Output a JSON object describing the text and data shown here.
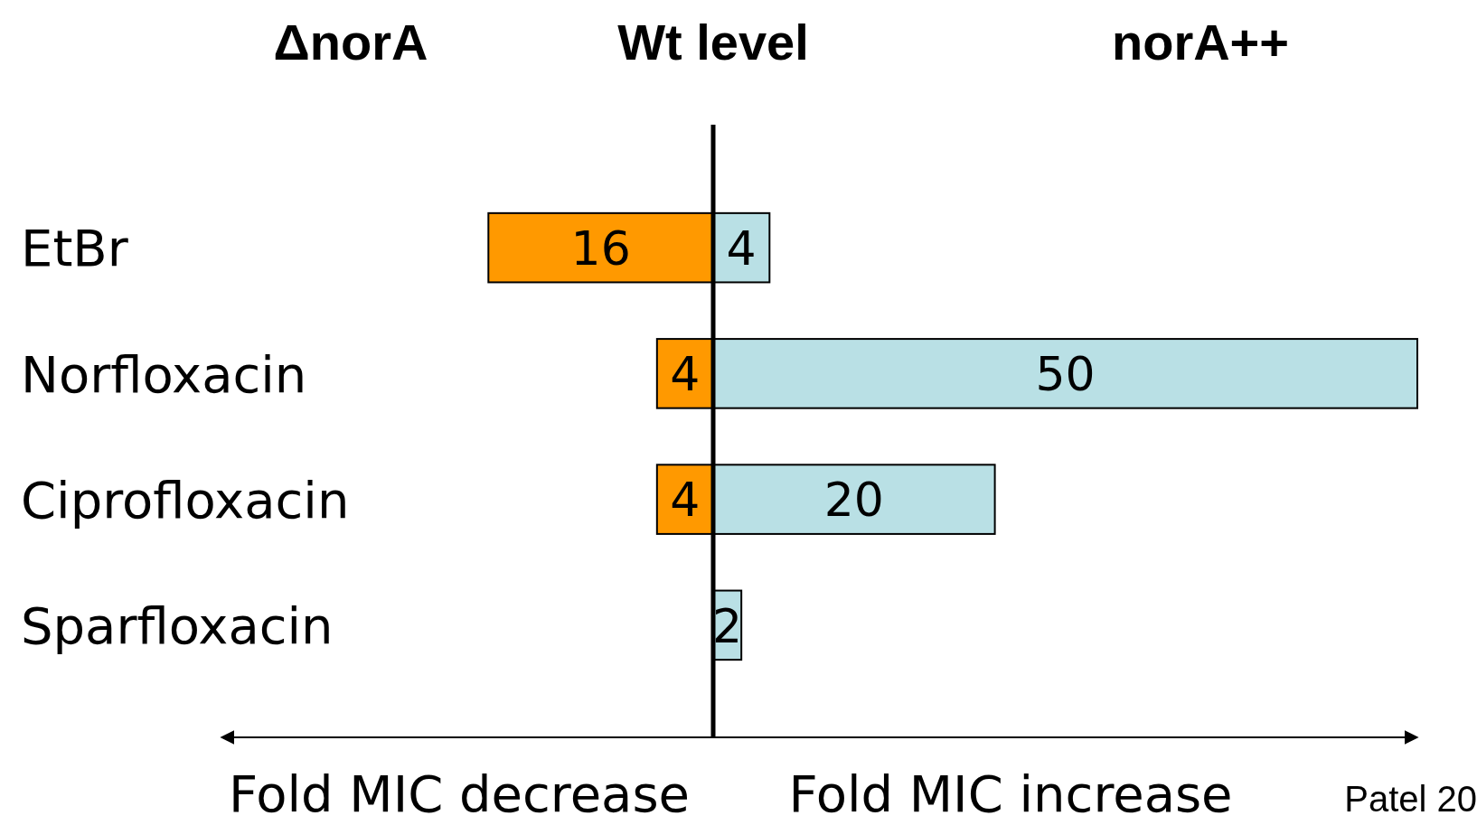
{
  "chart_data": [
    {
      "type": "bar",
      "orientation": "horizontal",
      "categories": [
        "EtBr",
        "Norfloxacin",
        "Ciprofloxacin",
        "Sparfloxacin"
      ],
      "series": [
        {
          "color": "#ff9900",
          "values": [
            16,
            4,
            4,
            null
          ]
        }
      ],
      "xlim": [
        35,
        0
      ],
      "tick_labels": "y",
      "data_labels": true,
      "annotations": [
        "ΔnorA",
        "Fold MIC decrease"
      ]
    },
    {
      "type": "bar",
      "orientation": "horizontal",
      "categories": [
        null,
        null,
        null,
        null
      ],
      "series": [
        {
          "color": "#b9e0e5",
          "values": [
            4,
            50,
            20,
            2
          ]
        }
      ],
      "xlim": [
        0,
        50
      ],
      "data_labels": true,
      "ref_lines": [
        {
          "axis": "x",
          "value": 0,
          "label": "Wt level"
        }
      ],
      "annotations": [
        "norA++",
        "Fold MIC increase",
        "Patel 20"
      ]
    }
  ]
}
